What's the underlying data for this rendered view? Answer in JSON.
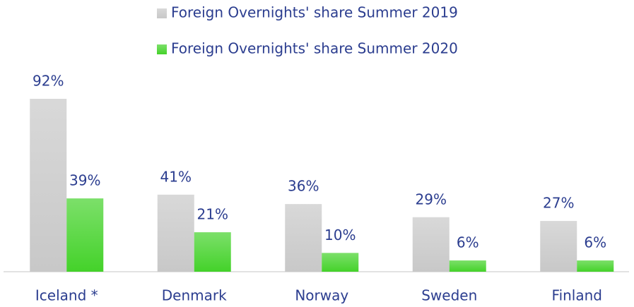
{
  "chart_data": {
    "type": "bar",
    "categories": [
      "Iceland *",
      "Denmark",
      "Norway",
      "Sweden",
      "Finland"
    ],
    "series": [
      {
        "name": "Foreign Overnights' share Summer 2019",
        "color": "#c8c8c8",
        "values": [
          92,
          41,
          36,
          29,
          27
        ],
        "value_labels": [
          "92%",
          "41%",
          "36%",
          "29%",
          "27%"
        ]
      },
      {
        "name": "Foreign Overnights' share Summer 2020",
        "color": "#44d22a",
        "values": [
          39,
          21,
          10,
          6,
          6
        ],
        "value_labels": [
          "39%",
          "21%",
          "10%",
          "6%",
          "6%"
        ]
      }
    ],
    "legend": "top"
  }
}
